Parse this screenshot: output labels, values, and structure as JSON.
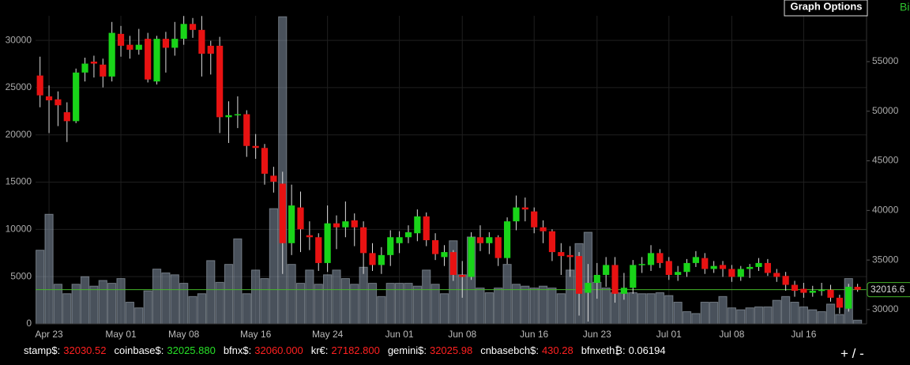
{
  "chart_data": {
    "type": "candlestick",
    "x": [
      0,
      1,
      2,
      3,
      4,
      5,
      6,
      7,
      8,
      9,
      10,
      11,
      12,
      13,
      14,
      15,
      16,
      17,
      18,
      19,
      20,
      21,
      22,
      23,
      24,
      25,
      26,
      27,
      28,
      29,
      30,
      31,
      32,
      33,
      34,
      35,
      36,
      37,
      38,
      39,
      40,
      41,
      42,
      43,
      44,
      45,
      46,
      47,
      48,
      49,
      50,
      51,
      52,
      53,
      54,
      55,
      56,
      57,
      58,
      59,
      60,
      61,
      62,
      63,
      64,
      65,
      66,
      67,
      68,
      69,
      70,
      71,
      72,
      73,
      74,
      75,
      76,
      77,
      78,
      79,
      80,
      81,
      82,
      83,
      84,
      85,
      86,
      87,
      88,
      89,
      90,
      91
    ],
    "open": [
      53600,
      51500,
      51200,
      49900,
      49000,
      53900,
      55000,
      54700,
      53500,
      57800,
      56700,
      56200,
      57300,
      53000,
      57300,
      56400,
      57300,
      58800,
      58200,
      56600,
      56600,
      49400,
      49600,
      49700,
      46500,
      46300,
      43500,
      42700,
      36700,
      40300,
      37500,
      37300,
      34700,
      38700,
      38300,
      39000,
      38300,
      35700,
      34500,
      35500,
      36700,
      37300,
      37700,
      39400,
      37000,
      35300,
      35800,
      33500,
      33300,
      37300,
      36700,
      37300,
      35200,
      38900,
      40300,
      39900,
      38300,
      37900,
      35800,
      35500,
      35400,
      31700,
      32700,
      33500,
      34500,
      31600,
      32200,
      34500,
      34500,
      35700,
      34900,
      33500,
      33800,
      34700,
      35200,
      34100,
      34500,
      34100,
      33300,
      34100,
      34300,
      34700,
      33700,
      33400,
      32500,
      32100,
      31700,
      31900,
      32000,
      31200,
      30100,
      32300
    ],
    "high": [
      55500,
      52600,
      52000,
      50900,
      54300,
      55400,
      55600,
      55300,
      59000,
      58600,
      57600,
      58300,
      57900,
      57600,
      58000,
      59000,
      59600,
      59400,
      59600,
      57100,
      57500,
      51000,
      51500,
      50100,
      47700,
      46700,
      44400,
      43900,
      42600,
      41900,
      38900,
      37700,
      40500,
      39500,
      40900,
      39700,
      38900,
      36700,
      36300,
      38000,
      37900,
      38500,
      40100,
      39800,
      37700,
      36500,
      36000,
      34900,
      37800,
      38500,
      37800,
      37500,
      39300,
      41500,
      41300,
      40300,
      39000,
      38100,
      36700,
      36400,
      35800,
      34600,
      34700,
      35300,
      35300,
      33700,
      35000,
      35300,
      36500,
      36100,
      35300,
      34400,
      35100,
      35900,
      35700,
      34900,
      34900,
      34500,
      34400,
      34600,
      35200,
      35100,
      34100,
      33800,
      32900,
      32700,
      32400,
      32700,
      32500,
      31500,
      32600,
      32600
    ],
    "low": [
      50400,
      47800,
      48500,
      46900,
      48800,
      53000,
      53400,
      52400,
      53000,
      55500,
      55300,
      55700,
      52900,
      52700,
      53900,
      55600,
      56700,
      57400,
      53500,
      53700,
      47800,
      46800,
      48300,
      45400,
      45200,
      42600,
      41800,
      33600,
      35500,
      35800,
      36000,
      33900,
      33800,
      36100,
      37300,
      36400,
      33600,
      33900,
      33600,
      34400,
      35700,
      36700,
      36900,
      36400,
      35000,
      34400,
      32900,
      31200,
      33000,
      35900,
      35600,
      34400,
      34600,
      38000,
      38900,
      37700,
      36700,
      34900,
      33500,
      33300,
      29400,
      28800,
      31100,
      32300,
      30700,
      31000,
      31600,
      33700,
      33900,
      34200,
      33000,
      32900,
      33300,
      34300,
      33600,
      33700,
      33300,
      32800,
      32900,
      33200,
      33900,
      33400,
      32800,
      31900,
      31300,
      31200,
      31300,
      31400,
      30800,
      29600,
      29800,
      31800
    ],
    "close": [
      51600,
      51100,
      50600,
      49000,
      53900,
      54800,
      54800,
      53500,
      57900,
      56600,
      56200,
      56700,
      53200,
      57300,
      56400,
      57300,
      58800,
      58200,
      55800,
      55800,
      49400,
      49600,
      49700,
      46500,
      46300,
      43700,
      42900,
      36700,
      40500,
      38100,
      37300,
      34700,
      38700,
      38300,
      38900,
      38300,
      35700,
      34500,
      35500,
      37300,
      37300,
      37800,
      39400,
      37000,
      35600,
      35800,
      33500,
      33300,
      37300,
      36700,
      37300,
      35200,
      38900,
      40300,
      40100,
      38300,
      37900,
      35800,
      35400,
      35300,
      31600,
      32700,
      33500,
      34500,
      31600,
      32200,
      34500,
      34600,
      35700,
      34700,
      33500,
      33800,
      34700,
      35300,
      34100,
      34400,
      34100,
      33300,
      34100,
      34300,
      34700,
      33700,
      33300,
      32500,
      31900,
      31700,
      31900,
      32000,
      31200,
      30200,
      32300,
      32000
    ],
    "volume": [
      7800,
      11600,
      4200,
      3200,
      4200,
      5000,
      4000,
      4600,
      4300,
      4800,
      2300,
      1700,
      3500,
      5800,
      5400,
      5200,
      4300,
      2900,
      3200,
      6700,
      4400,
      6300,
      9000,
      3200,
      5700,
      4800,
      12200,
      32500,
      6300,
      4300,
      5700,
      4200,
      5200,
      5700,
      4800,
      4200,
      6000,
      4300,
      2900,
      4300,
      4300,
      4300,
      4000,
      5700,
      4200,
      3200,
      8800,
      5200,
      9200,
      3800,
      3300,
      3800,
      6300,
      4200,
      4000,
      3800,
      4000,
      3800,
      3200,
      5700,
      8500,
      9700,
      4400,
      3800,
      3300,
      3300,
      3300,
      3200,
      3200,
      3300,
      3000,
      2300,
      1300,
      1100,
      2300,
      2300,
      2900,
      1700,
      1500,
      1700,
      1800,
      1800,
      2500,
      2900,
      2300,
      1800,
      1500,
      1300,
      2100,
      1000,
      4800,
      400
    ],
    "up_color": "#19d419",
    "down_color": "#e81212",
    "volume_color": "#8594a6",
    "last_price_color": "#45b52a",
    "xlim": [
      -0.5,
      92
    ],
    "xticks": [
      {
        "value": 1,
        "label": "Apr 23"
      },
      {
        "value": 9,
        "label": "May 01"
      },
      {
        "value": 16,
        "label": "May 08"
      },
      {
        "value": 24,
        "label": "May 16"
      },
      {
        "value": 32,
        "label": "May 24"
      },
      {
        "value": 40,
        "label": "Jun 01"
      },
      {
        "value": 47,
        "label": "Jun 08"
      },
      {
        "value": 55,
        "label": "Jun 16"
      },
      {
        "value": 62,
        "label": "Jun 23"
      },
      {
        "value": 70,
        "label": "Jul 01"
      },
      {
        "value": 77,
        "label": "Jul 08"
      },
      {
        "value": 85,
        "label": "Jul 16"
      }
    ],
    "ylim": [
      0,
      32600
    ],
    "yticks": [
      0,
      5000,
      10000,
      15000,
      20000,
      25000,
      30000
    ],
    "y2lim": [
      28560,
      59620
    ],
    "y2ticks": [
      30000,
      35000,
      40000,
      45000,
      50000,
      55000
    ],
    "last_price": 32016.6,
    "grid": true
  },
  "graph_options_button": "Graph Options",
  "brand_partial": "Bi",
  "zoom_control": "+ / -",
  "tickers": [
    {
      "label": "stamp$:",
      "value": "32030.52",
      "color": "#ff2020"
    },
    {
      "label": "coinbase$:",
      "value": "32025.880",
      "color": "#27e027"
    },
    {
      "label": "bfnx$:",
      "value": "32060.000",
      "color": "#ff2020"
    },
    {
      "label": "kr€:",
      "value": "27182.800",
      "color": "#ff2020"
    },
    {
      "label": "gemini$:",
      "value": "32025.98",
      "color": "#ff2020"
    },
    {
      "label": "cnbasebch$:",
      "value": "430.28",
      "color": "#ff2020"
    },
    {
      "label": "bfnxeth₿:",
      "value": "0.06194",
      "color": "#ffffff"
    }
  ]
}
